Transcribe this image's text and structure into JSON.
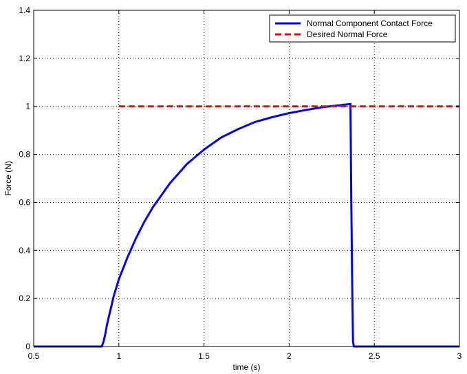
{
  "chart_data": {
    "type": "line",
    "xlabel": "time (s)",
    "ylabel": "Force (N)",
    "xlim": [
      0.5,
      3
    ],
    "ylim": [
      0,
      1.4
    ],
    "x_ticks": [
      "0.5",
      "1",
      "1.5",
      "2",
      "2.5",
      "3"
    ],
    "y_ticks": [
      "0",
      "0.2",
      "0.4",
      "0.6",
      "0.8",
      "1",
      "1.2",
      "1.4"
    ],
    "grid": true,
    "legend_position": "top-right",
    "series": [
      {
        "name": "Normal Component Contact Force",
        "color": "#0000ff",
        "style": "solid",
        "x": [
          0.5,
          0.9,
          0.91,
          0.92,
          0.93,
          0.95,
          0.97,
          1.0,
          1.05,
          1.1,
          1.15,
          1.2,
          1.25,
          1.3,
          1.4,
          1.5,
          1.6,
          1.7,
          1.8,
          1.9,
          2.0,
          2.1,
          2.2,
          2.3,
          2.36,
          2.365,
          2.37,
          2.375,
          2.38,
          3.0
        ],
        "y": [
          0,
          0,
          0.02,
          0.05,
          0.09,
          0.15,
          0.21,
          0.28,
          0.37,
          0.45,
          0.52,
          0.58,
          0.63,
          0.68,
          0.76,
          0.82,
          0.87,
          0.905,
          0.935,
          0.955,
          0.972,
          0.985,
          0.997,
          1.005,
          1.01,
          0.6,
          0.28,
          0.02,
          0,
          0
        ]
      },
      {
        "name": "Desired Normal Force",
        "color": "#ff0000",
        "style": "dashed",
        "x": [
          1.0,
          3.0
        ],
        "y": [
          1.0,
          1.0
        ]
      }
    ]
  }
}
